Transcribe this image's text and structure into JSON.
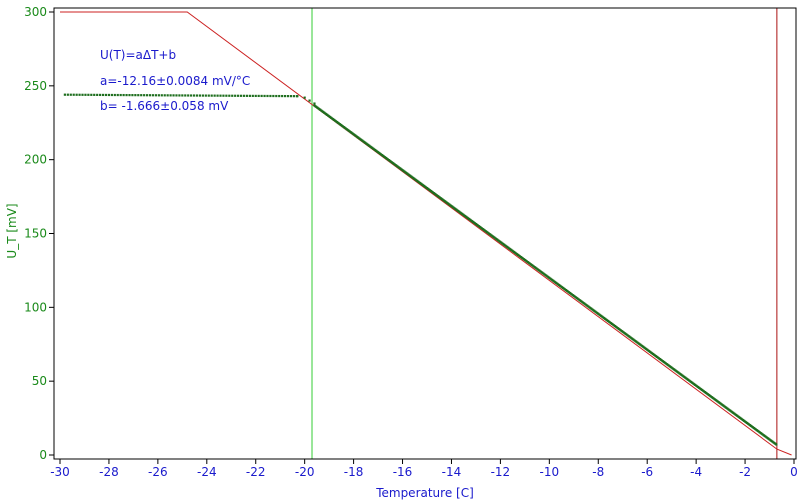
{
  "chart_data": {
    "type": "scatter",
    "title": "",
    "xlabel": "Temperature [C]",
    "ylabel": "U_T [mV]",
    "xlim": [
      -30,
      0
    ],
    "ylim": [
      0,
      300
    ],
    "x_ticks": [
      -30,
      -28,
      -26,
      -24,
      -22,
      -20,
      -18,
      -16,
      -14,
      -12,
      -10,
      -8,
      -6,
      -4,
      -2,
      0
    ],
    "y_ticks": [
      0,
      50,
      100,
      150,
      200,
      250,
      300
    ],
    "grid": false,
    "annotations": [
      "U(T)=aΔT+b",
      "a=-12.16±0.0084 mV/°C",
      "b= -1.666±0.058 mV"
    ],
    "series": [
      {
        "color": "#1e6e1e",
        "style": "markers",
        "plateau": {
          "x_start": -29.8,
          "x_end": -20.3,
          "y_start": 244,
          "y_end": 243
        },
        "knee": [
          [
            -20.3,
            243
          ],
          [
            -20.0,
            242
          ],
          [
            -19.8,
            240
          ],
          [
            -19.6,
            238
          ]
        ],
        "linear": {
          "x_start": -19.6,
          "x_end": -0.7,
          "slope": -12.16,
          "intercept": -1.666
        }
      },
      {
        "color": "#cc2222",
        "style": "line",
        "points": [
          [
            -30,
            300
          ],
          [
            -24.8,
            300
          ],
          [
            -0.7,
            4
          ],
          [
            -0.1,
            0
          ]
        ]
      }
    ],
    "vertical_lines": [
      {
        "x": -19.7,
        "color": "#33cc33"
      },
      {
        "x": -0.7,
        "color": "#aa1111"
      }
    ],
    "colors": {
      "axis_x": "#1a1acc",
      "axis_y": "#1a8a1a",
      "frame": "#000000"
    }
  }
}
